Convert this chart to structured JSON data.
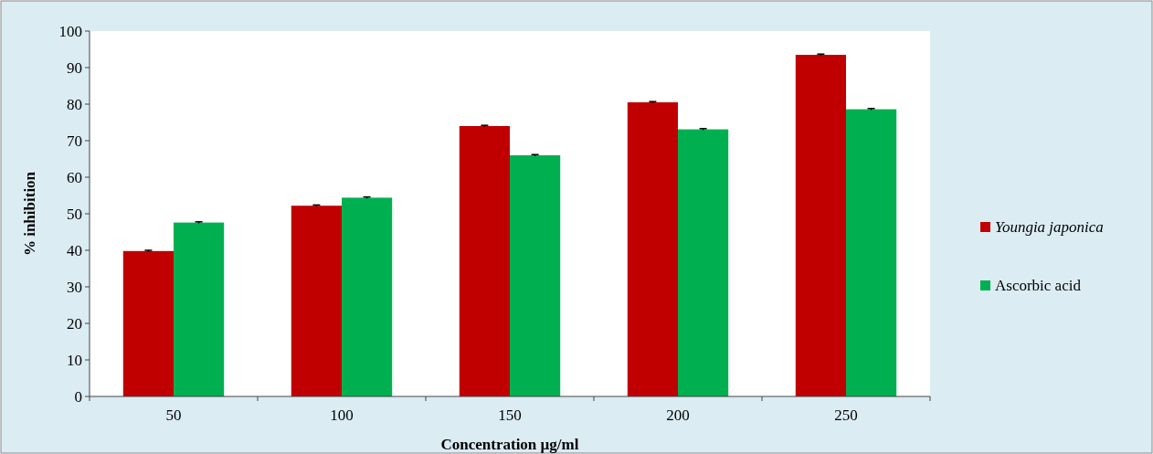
{
  "chart_data": {
    "type": "bar",
    "xlabel": "Concentration µg/ml",
    "ylabel": "% inhibition",
    "categories": [
      "50",
      "100",
      "150",
      "200",
      "250"
    ],
    "series": [
      {
        "name": "Youngia japonica",
        "color": "#c00000",
        "values": [
          39.8,
          52.2,
          74,
          80.5,
          93.5
        ],
        "errors": [
          0.2,
          0.2,
          0.2,
          0.2,
          0.2
        ]
      },
      {
        "name": "Ascorbic acid",
        "color": "#00b050",
        "values": [
          47.6,
          54.4,
          66,
          73.1,
          78.6
        ],
        "errors": [
          0.2,
          0.2,
          0.2,
          0.2,
          0.2
        ]
      }
    ],
    "ylim": [
      0,
      100
    ],
    "yticks": [
      0,
      10,
      20,
      30,
      40,
      50,
      60,
      70,
      80,
      90,
      100
    ],
    "grid": false,
    "legend": "right"
  }
}
